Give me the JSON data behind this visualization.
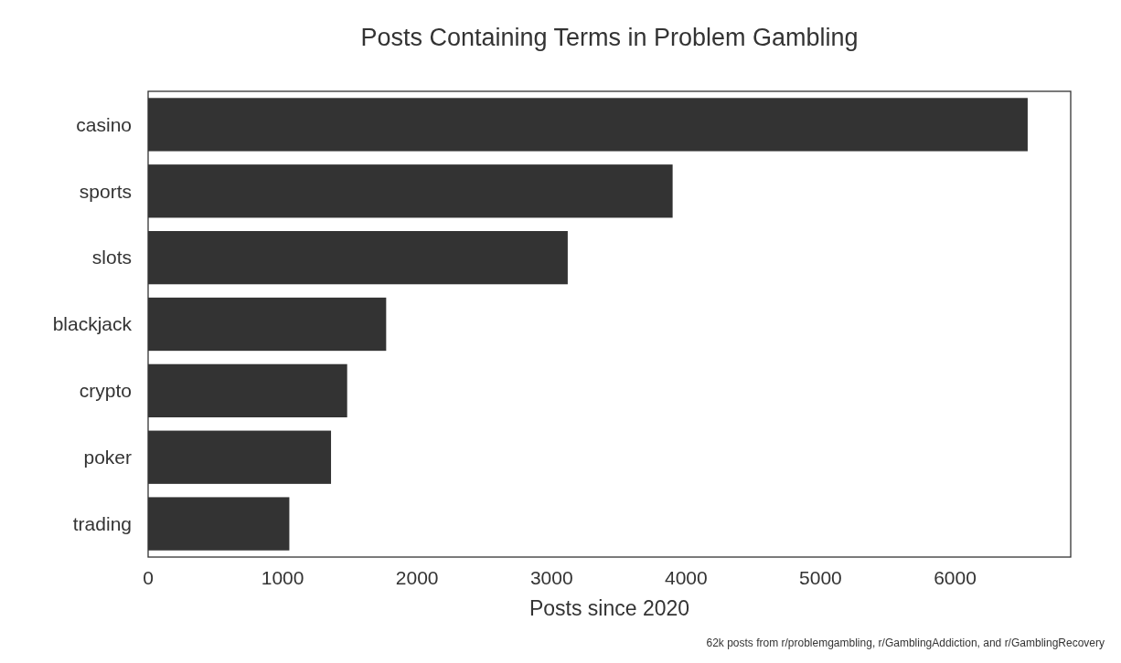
{
  "chart_data": {
    "type": "bar",
    "orientation": "horizontal",
    "title": "Posts Containing Terms in Problem Gambling",
    "xlabel": "Posts since 2020",
    "categories": [
      "casino",
      "sports",
      "slots",
      "blackjack",
      "crypto",
      "poker",
      "trading"
    ],
    "values": [
      6540,
      3900,
      3120,
      1770,
      1480,
      1360,
      1050
    ],
    "color": "#333333",
    "xlim": [
      0,
      6860
    ],
    "xticks": [
      0,
      1000,
      2000,
      3000,
      4000,
      5000,
      6000
    ],
    "grid": false,
    "annotations": [
      "62k posts from r/problemgambling, r/GamblingAddiction, and r/GamblingRecovery"
    ]
  }
}
